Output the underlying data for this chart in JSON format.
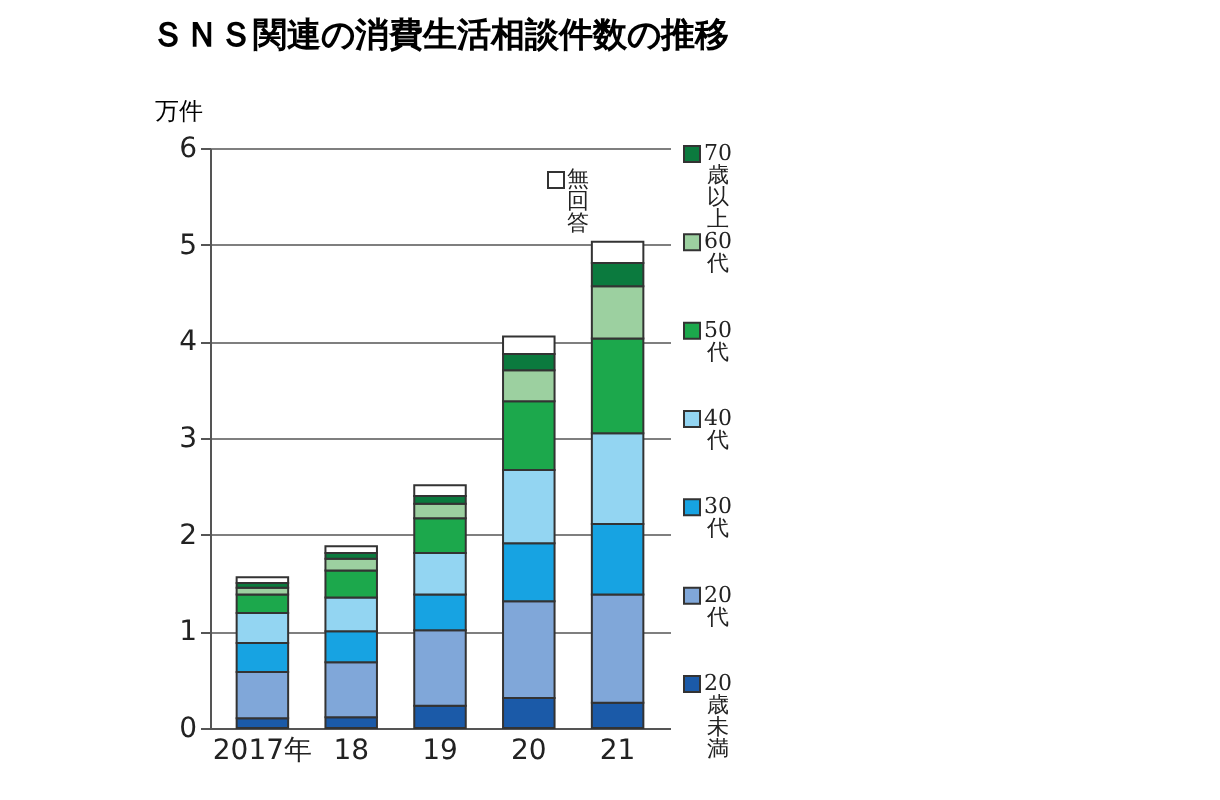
{
  "chart_data": {
    "type": "bar",
    "title": "ＳＮＳ関連の消費生活相談件数の推移",
    "ylabel": "万件",
    "categories": [
      "2017年",
      "18",
      "19",
      "20",
      "21"
    ],
    "stacked": true,
    "legend": "right",
    "grid": "y",
    "ylim": [
      0,
      6
    ],
    "yticks": [
      0,
      1,
      2,
      3,
      4,
      5,
      6
    ],
    "series": [
      {
        "name": "20歳未満",
        "color": "#1b5aa8",
        "values": [
          0.1,
          0.11,
          0.23,
          0.31,
          0.26
        ]
      },
      {
        "name": "20代",
        "color": "#80a7d9",
        "values": [
          0.48,
          0.57,
          0.78,
          1.0,
          1.12
        ]
      },
      {
        "name": "30代",
        "color": "#17a3e2",
        "values": [
          0.3,
          0.32,
          0.37,
          0.6,
          0.73
        ]
      },
      {
        "name": "40代",
        "color": "#93d5f2",
        "values": [
          0.31,
          0.35,
          0.43,
          0.76,
          0.94
        ]
      },
      {
        "name": "50代",
        "color": "#1ca84c",
        "values": [
          0.19,
          0.28,
          0.36,
          0.71,
          0.98
        ]
      },
      {
        "name": "60代",
        "color": "#9cd0a0",
        "values": [
          0.07,
          0.12,
          0.15,
          0.32,
          0.54
        ]
      },
      {
        "name": "70歳以上",
        "color": "#0b7a3e",
        "values": [
          0.05,
          0.06,
          0.08,
          0.17,
          0.24
        ]
      },
      {
        "name": "無回答",
        "color": "#ffffff",
        "values": [
          0.06,
          0.07,
          0.11,
          0.18,
          0.22
        ]
      }
    ]
  }
}
